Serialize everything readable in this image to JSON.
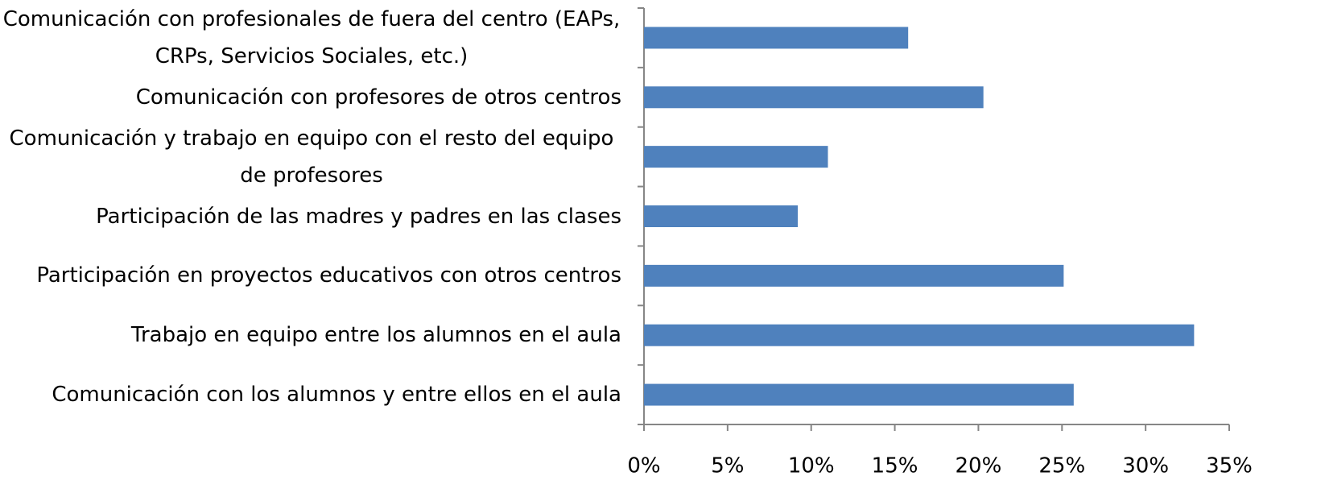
{
  "chart_data": {
    "type": "bar",
    "orientation": "horizontal",
    "categories": [
      "Comunicación con profesionales de fuera del centro (EAPs, CRPs, Servicios Sociales, etc.)",
      "Comunicación con profesores de otros centros",
      "Comunicación y trabajo en equipo con el resto del equipo de profesores",
      "Participación de las madres y padres en las clases",
      "Participación en proyectos educativos con otros centros",
      "Trabajo en equipo entre los alumnos en el aula",
      "Comunicación con los alumnos y entre ellos en el aula"
    ],
    "values": [
      15.8,
      20.3,
      11.0,
      9.2,
      25.1,
      32.9,
      25.7
    ],
    "color": "#4f81bd",
    "xlim": [
      0,
      35
    ],
    "xticks": [
      {
        "value": 0,
        "label": "0%"
      },
      {
        "value": 5,
        "label": "5%"
      },
      {
        "value": 10,
        "label": "10%"
      },
      {
        "value": 15,
        "label": "15%"
      },
      {
        "value": 20,
        "label": "20%"
      },
      {
        "value": 25,
        "label": "25%"
      },
      {
        "value": 30,
        "label": "30%"
      },
      {
        "value": 35,
        "label": "35%"
      }
    ],
    "grid": false
  }
}
